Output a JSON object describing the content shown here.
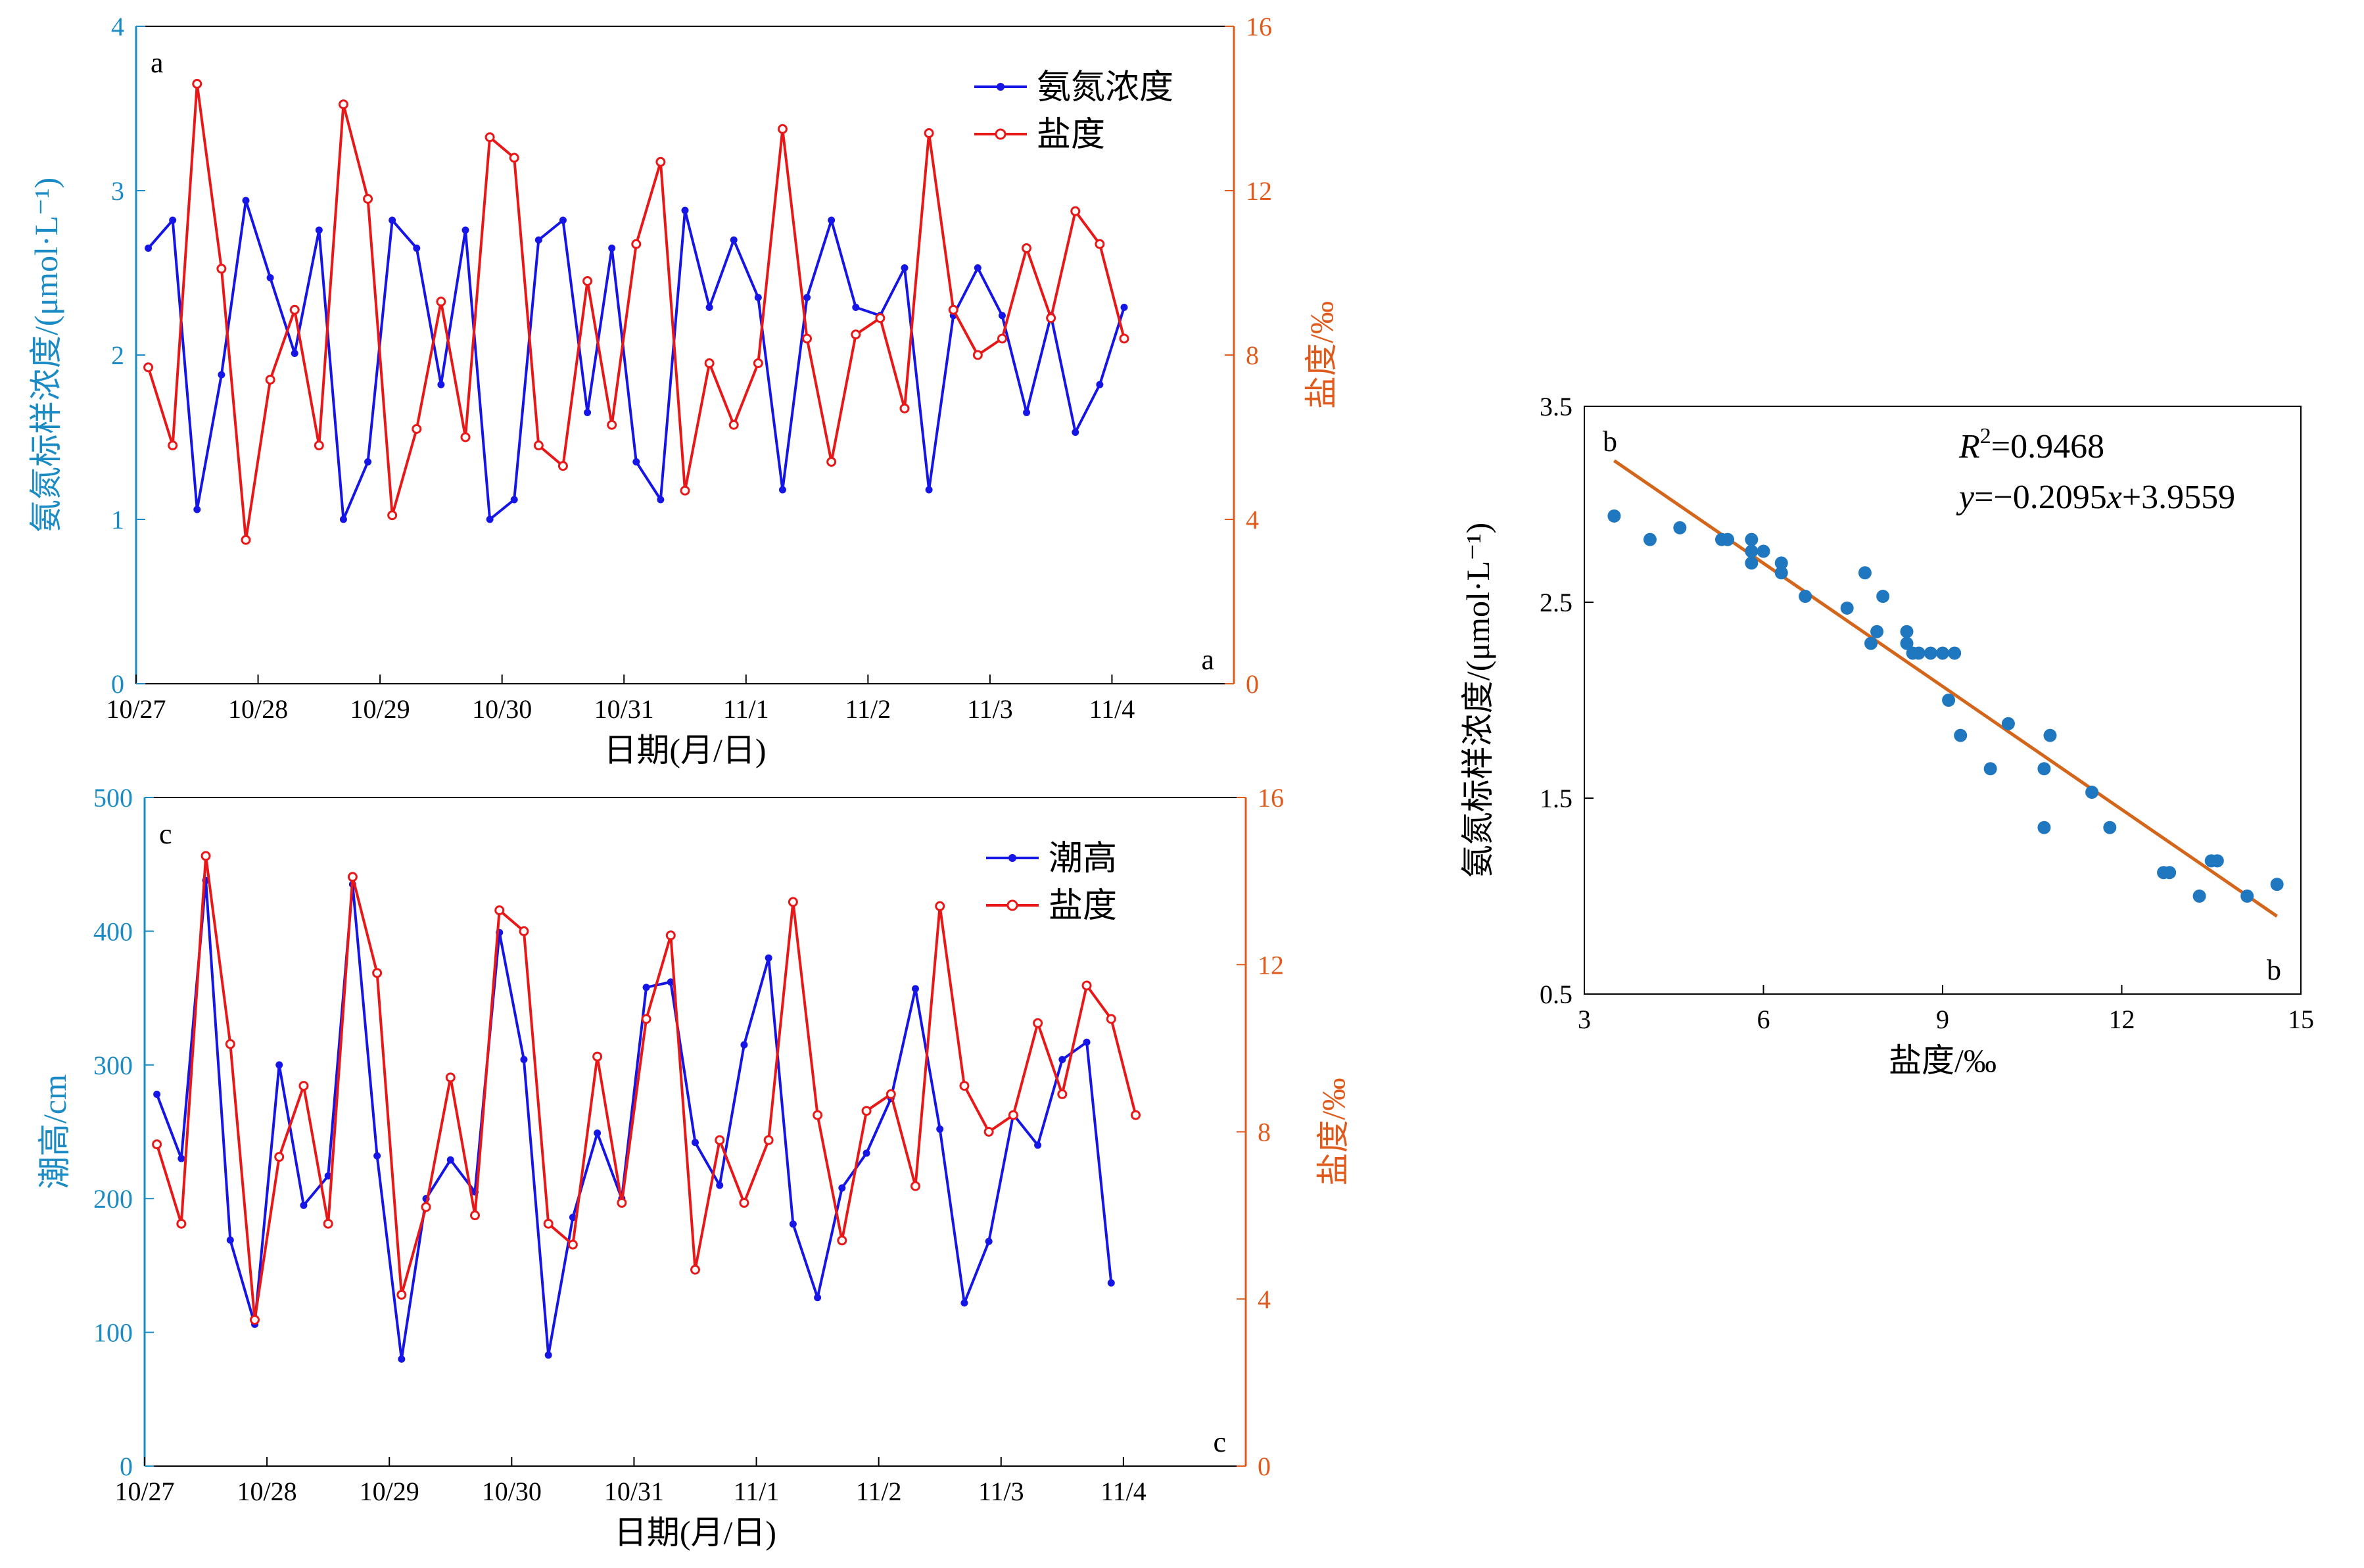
{
  "colors": {
    "axis_left": "#1A8BC4",
    "axis_right": "#E05A1C",
    "series_blue": "#1515E6",
    "series_red": "#E81818",
    "scatter": "#1F77C0",
    "fit_line": "#D4661C"
  },
  "chart_data": [
    {
      "id": "a",
      "type": "line",
      "panel_labels": [
        "a",
        "a"
      ],
      "xlabel": "日期(月/日)",
      "ylabel_left": "氨氮标样浓度/(μmol·L⁻¹)",
      "ylabel_right": "盐度/‰",
      "x_ticks": [
        "10/27",
        "10/28",
        "10/29",
        "10/30",
        "10/31",
        "11/1",
        "11/2",
        "11/3",
        "11/4"
      ],
      "xlim": [
        0,
        9
      ],
      "ylim_left": [
        0,
        4
      ],
      "yticks_left": [
        "0",
        "1",
        "2",
        "3",
        "4"
      ],
      "ylim_right": [
        0,
        16
      ],
      "yticks_right": [
        "0",
        "4",
        "8",
        "12",
        "16"
      ],
      "legend": [
        "氨氮浓度",
        "盐度"
      ],
      "legend_position": "top-right",
      "series": [
        {
          "name": "氨氮浓度",
          "axis": "left",
          "color_key": "series_blue",
          "x": [
            0.1,
            0.3,
            0.5,
            0.7,
            0.9,
            1.1,
            1.3,
            1.5,
            1.7,
            1.9,
            2.1,
            2.3,
            2.5,
            2.7,
            2.9,
            3.1,
            3.3,
            3.5,
            3.7,
            3.9,
            4.1,
            4.3,
            4.5,
            4.7,
            4.9,
            5.1,
            5.3,
            5.5,
            5.7,
            5.9,
            6.1,
            6.3,
            6.5,
            6.7,
            6.9,
            7.1,
            7.3,
            7.5,
            7.7,
            7.9,
            8.1
          ],
          "values": [
            2.65,
            2.82,
            1.06,
            1.88,
            2.94,
            2.47,
            2.01,
            2.76,
            1.0,
            1.35,
            2.82,
            2.65,
            1.82,
            2.76,
            1.0,
            1.12,
            2.7,
            2.82,
            1.65,
            2.65,
            1.35,
            1.12,
            2.88,
            2.29,
            2.7,
            2.35,
            1.18,
            2.35,
            2.82,
            2.29,
            2.24,
            2.53,
            1.18,
            2.24,
            2.53,
            2.24,
            1.65,
            2.24,
            1.53,
            1.82,
            2.29
          ]
        },
        {
          "name": "盐度",
          "axis": "right",
          "color_key": "series_red",
          "x": [
            0.1,
            0.3,
            0.5,
            0.7,
            0.9,
            1.1,
            1.3,
            1.5,
            1.7,
            1.9,
            2.1,
            2.3,
            2.5,
            2.7,
            2.9,
            3.1,
            3.3,
            3.5,
            3.7,
            3.9,
            4.1,
            4.3,
            4.5,
            4.7,
            4.9,
            5.1,
            5.3,
            5.5,
            5.7,
            5.9,
            6.1,
            6.3,
            6.5,
            6.7,
            6.9,
            7.1,
            7.3,
            7.5,
            7.7,
            7.9,
            8.1
          ],
          "values": [
            7.7,
            5.8,
            14.6,
            10.1,
            3.5,
            7.4,
            9.1,
            5.8,
            14.1,
            11.8,
            4.1,
            6.2,
            9.3,
            6.0,
            13.3,
            12.8,
            5.8,
            5.3,
            9.8,
            6.3,
            10.7,
            12.7,
            4.7,
            7.8,
            6.3,
            7.8,
            13.5,
            8.4,
            5.4,
            8.5,
            8.9,
            6.7,
            13.4,
            9.1,
            8.0,
            8.4,
            10.6,
            8.9,
            11.5,
            10.7,
            8.4
          ]
        }
      ]
    },
    {
      "id": "c",
      "type": "line",
      "panel_labels": [
        "c",
        "c"
      ],
      "xlabel": "日期(月/日)",
      "ylabel_left": "潮高/cm",
      "ylabel_right": "盐度/‰",
      "x_ticks": [
        "10/27",
        "10/28",
        "10/29",
        "10/30",
        "10/31",
        "11/1",
        "11/2",
        "11/3",
        "11/4"
      ],
      "xlim": [
        0,
        9
      ],
      "ylim_left": [
        0,
        500
      ],
      "yticks_left": [
        "0",
        "100",
        "200",
        "300",
        "400",
        "500"
      ],
      "ylim_right": [
        0,
        16
      ],
      "yticks_right": [
        "0",
        "4",
        "8",
        "12",
        "16"
      ],
      "legend": [
        "潮高",
        "盐度"
      ],
      "legend_position": "top-right",
      "series": [
        {
          "name": "潮高",
          "axis": "left",
          "color_key": "series_blue",
          "x": [
            0.1,
            0.3,
            0.5,
            0.7,
            0.9,
            1.1,
            1.3,
            1.5,
            1.7,
            1.9,
            2.1,
            2.3,
            2.5,
            2.7,
            2.9,
            3.1,
            3.3,
            3.5,
            3.7,
            3.9,
            4.1,
            4.3,
            4.5,
            4.7,
            4.9,
            5.1,
            5.3,
            5.5,
            5.7,
            5.9,
            6.1,
            6.3,
            6.5,
            6.7,
            6.9,
            7.1,
            7.3,
            7.5,
            7.7,
            7.9,
            8.1
          ],
          "values": [
            278,
            230,
            438,
            169,
            106,
            300,
            195,
            217,
            435,
            232,
            80,
            200,
            229,
            205,
            399,
            304,
            83,
            186,
            249,
            200,
            358,
            362,
            242,
            210,
            315,
            380,
            181,
            126,
            208,
            234,
            275,
            357,
            252,
            122,
            168,
            263,
            240,
            304,
            317,
            137,
            null
          ]
        },
        {
          "name": "盐度",
          "axis": "right",
          "color_key": "series_red",
          "x": [
            0.1,
            0.3,
            0.5,
            0.7,
            0.9,
            1.1,
            1.3,
            1.5,
            1.7,
            1.9,
            2.1,
            2.3,
            2.5,
            2.7,
            2.9,
            3.1,
            3.3,
            3.5,
            3.7,
            3.9,
            4.1,
            4.3,
            4.5,
            4.7,
            4.9,
            5.1,
            5.3,
            5.5,
            5.7,
            5.9,
            6.1,
            6.3,
            6.5,
            6.7,
            6.9,
            7.1,
            7.3,
            7.5,
            7.7,
            7.9,
            8.1
          ],
          "values": [
            7.7,
            5.8,
            14.6,
            10.1,
            3.5,
            7.4,
            9.1,
            5.8,
            14.1,
            11.8,
            4.1,
            6.2,
            9.3,
            6.0,
            13.3,
            12.8,
            5.8,
            5.3,
            9.8,
            6.3,
            10.7,
            12.7,
            4.7,
            7.8,
            6.3,
            7.8,
            13.5,
            8.4,
            5.4,
            8.5,
            8.9,
            6.7,
            13.4,
            9.1,
            8.0,
            8.4,
            10.6,
            8.9,
            11.5,
            10.7,
            8.4
          ]
        }
      ]
    },
    {
      "id": "b",
      "type": "scatter",
      "panel_labels": [
        "b",
        "b"
      ],
      "xlabel": "盐度/‰",
      "ylabel": "氨氮标样浓度/(μmol·L⁻¹)",
      "xlim": [
        3,
        15
      ],
      "xticks": [
        "3",
        "6",
        "9",
        "12",
        "15"
      ],
      "ylim": [
        0.5,
        3.5
      ],
      "yticks": [
        "0.5",
        "1.5",
        "2.5",
        "3.5"
      ],
      "annotation_r2_label": "R",
      "annotation_r2_value": "=0.9468",
      "annotation_eq_y": "y",
      "annotation_eq_mid": "=−0.2095",
      "annotation_eq_x": "x",
      "annotation_eq_end": "+3.9559",
      "fit": {
        "slope": -0.2095,
        "intercept": 3.9559,
        "x_range": [
          3.5,
          14.6
        ]
      },
      "points": {
        "x": [
          3.5,
          4.1,
          4.6,
          5.3,
          5.4,
          5.8,
          5.8,
          5.8,
          6.0,
          6.3,
          6.3,
          6.7,
          7.4,
          7.7,
          7.8,
          7.9,
          8.0,
          8.4,
          8.4,
          8.5,
          8.6,
          8.8,
          9.0,
          9.1,
          9.2,
          9.3,
          9.8,
          10.1,
          10.7,
          10.7,
          10.8,
          11.5,
          11.8,
          12.7,
          12.8,
          13.3,
          13.5,
          13.6,
          14.1,
          14.6
        ],
        "y": [
          2.94,
          2.82,
          2.88,
          2.82,
          2.82,
          2.82,
          2.76,
          2.7,
          2.76,
          2.7,
          2.65,
          2.53,
          2.47,
          2.65,
          2.29,
          2.35,
          2.53,
          2.35,
          2.29,
          2.24,
          2.24,
          2.24,
          2.24,
          2.0,
          2.24,
          1.82,
          1.65,
          1.88,
          1.65,
          1.35,
          1.82,
          1.53,
          1.35,
          1.12,
          1.12,
          1.0,
          1.18,
          1.18,
          1.0,
          1.06
        ]
      }
    }
  ]
}
